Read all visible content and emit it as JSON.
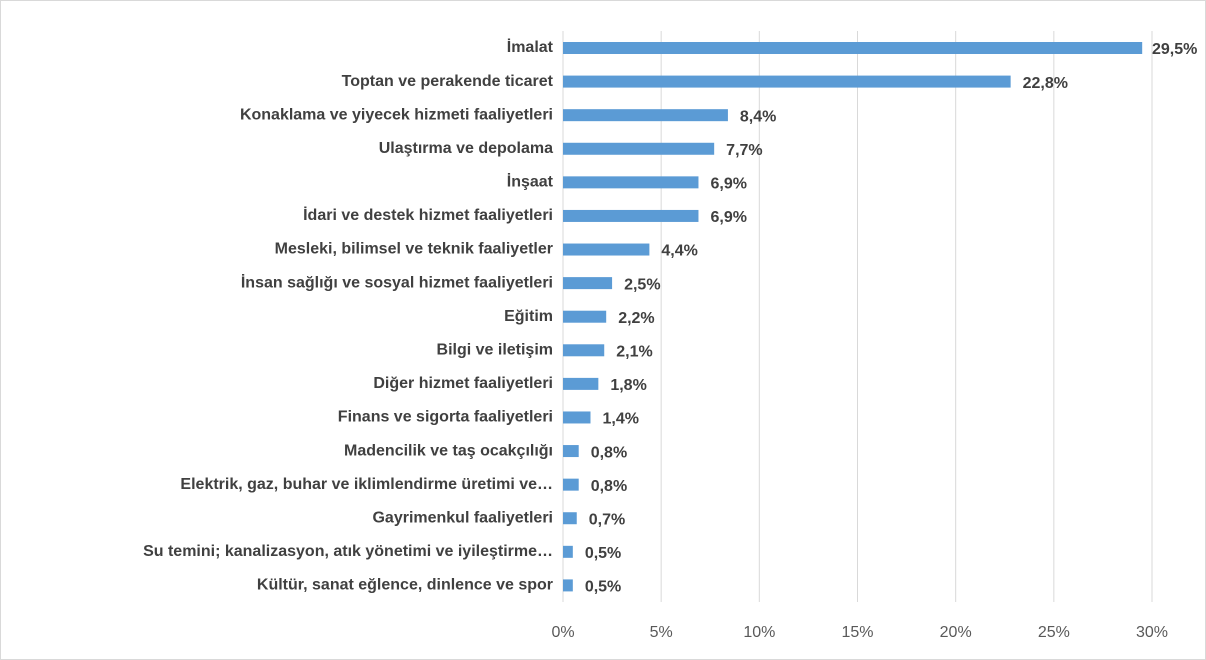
{
  "chart_data": {
    "type": "bar",
    "orientation": "horizontal",
    "categories": [
      "İmalat",
      "Toptan ve perakende ticaret",
      "Konaklama ve yiyecek hizmeti faaliyetleri",
      "Ulaştırma ve depolama",
      "İnşaat",
      "İdari ve destek hizmet faaliyetleri",
      "Mesleki, bilimsel ve teknik faaliyetler",
      "İnsan sağlığı ve sosyal hizmet faaliyetleri",
      "Eğitim",
      "Bilgi ve iletişim",
      "Diğer hizmet faaliyetleri",
      "Finans ve sigorta faaliyetleri",
      "Madencilik ve taş ocakçılığı",
      "Elektrik, gaz, buhar ve iklimlendirme üretimi ve…",
      "Gayrimenkul faaliyetleri",
      "Su temini; kanalizasyon, atık yönetimi ve iyileştirme…",
      "Kültür, sanat eğlence, dinlence ve spor"
    ],
    "values": [
      29.5,
      22.8,
      8.4,
      7.7,
      6.9,
      6.9,
      4.4,
      2.5,
      2.2,
      2.1,
      1.8,
      1.4,
      0.8,
      0.8,
      0.7,
      0.5,
      0.5
    ],
    "value_labels": [
      "29,5%",
      "22,8%",
      "8,4%",
      "7,7%",
      "6,9%",
      "6,9%",
      "4,4%",
      "2,5%",
      "2,2%",
      "2,1%",
      "1,8%",
      "1,4%",
      "0,8%",
      "0,8%",
      "0,7%",
      "0,5%",
      "0,5%"
    ],
    "color": "#5b9bd5",
    "xlim": [
      0,
      30
    ],
    "xticks": [
      {
        "value": 0,
        "label": "0%"
      },
      {
        "value": 5,
        "label": "5%"
      },
      {
        "value": 10,
        "label": "10%"
      },
      {
        "value": 15,
        "label": "15%"
      },
      {
        "value": 20,
        "label": "20%"
      },
      {
        "value": 25,
        "label": "25%"
      },
      {
        "value": 30,
        "label": "30%"
      }
    ],
    "grid": true
  }
}
